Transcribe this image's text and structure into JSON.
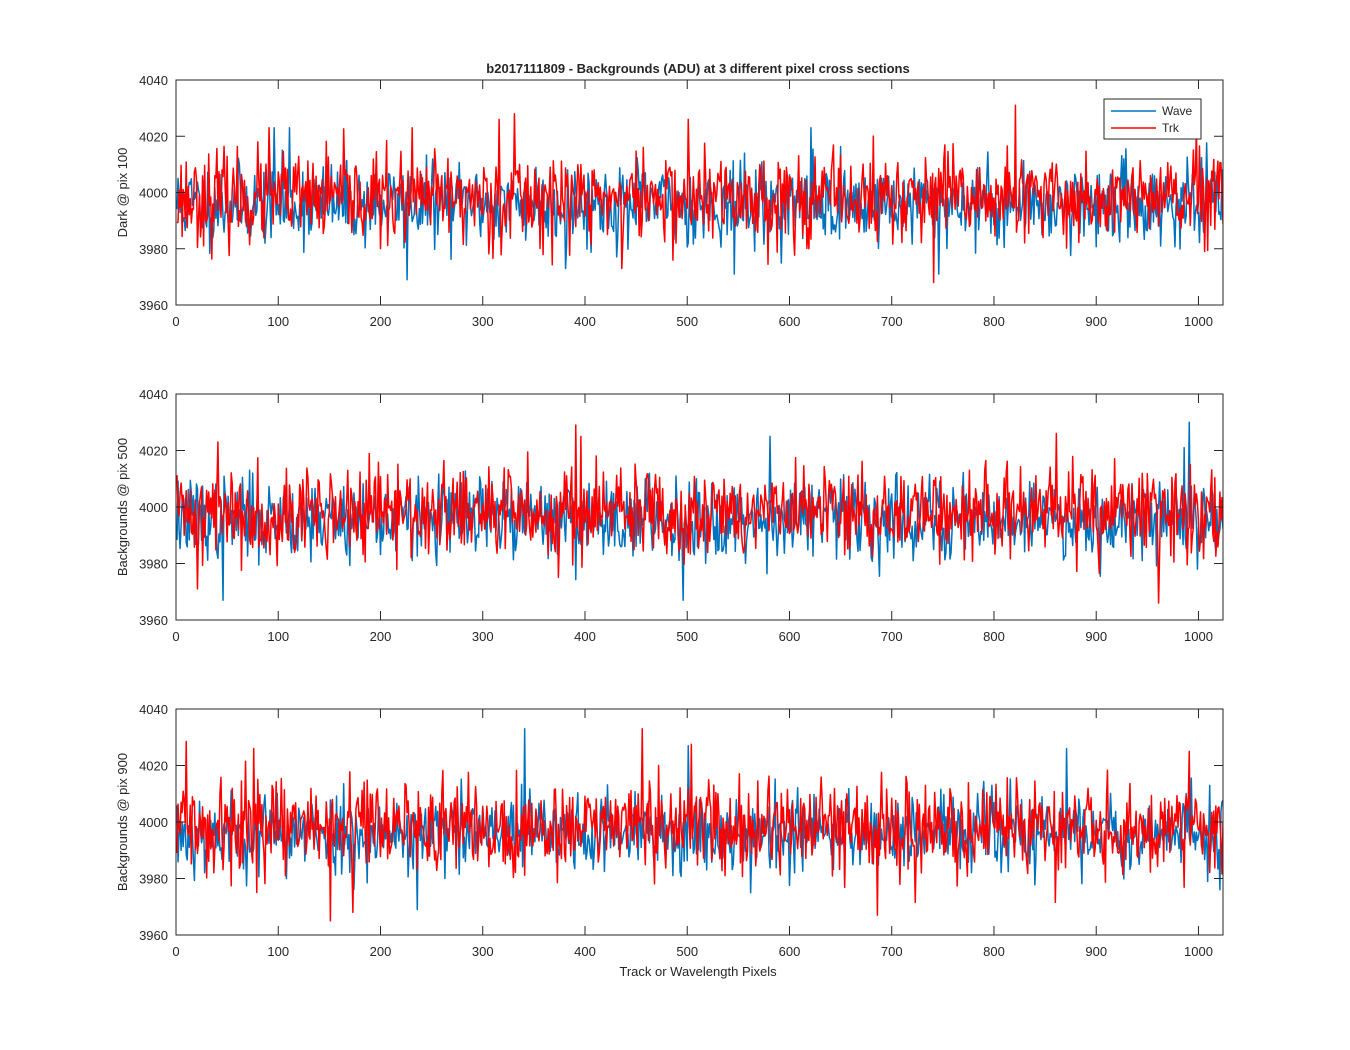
{
  "figure": {
    "title": "b2017111809 - Backgrounds (ADU) at 3 different pixel cross sections",
    "xlabel": "Track or Wavelength Pixels"
  },
  "colors": {
    "wave": "#0072BD",
    "trk": "#FF0000",
    "axes": "#262626",
    "background": "#ffffff"
  },
  "legend": {
    "location": "top-right",
    "entries": [
      "Wave",
      "Trk"
    ]
  },
  "chart_data": [
    {
      "type": "line",
      "title": "",
      "ylabel": "Dark @ pix 100",
      "xlim": [
        0,
        1024
      ],
      "ylim": [
        3960,
        4040
      ],
      "xticks": [
        0,
        100,
        200,
        300,
        400,
        500,
        600,
        700,
        800,
        900,
        1000
      ],
      "yticks": [
        3960,
        3980,
        4000,
        4020,
        4040
      ],
      "grid": false,
      "legend": true,
      "series": [
        {
          "name": "Wave",
          "color": "#0072BD",
          "n_points": 1024,
          "mean": 3996,
          "std": 7,
          "seed": 11,
          "extrema": [
            [
              95,
              4023
            ],
            [
              110,
              4023
            ],
            [
              225,
              3969
            ],
            [
              380,
              3973
            ],
            [
              545,
              3971
            ],
            [
              620,
              4023
            ],
            [
              745,
              3971
            ]
          ]
        },
        {
          "name": "Trk",
          "color": "#FF0000",
          "n_points": 1024,
          "mean": 3998,
          "std": 8,
          "seed": 23,
          "extrema": [
            [
              90,
              4023
            ],
            [
              230,
              4023
            ],
            [
              315,
              4026
            ],
            [
              330,
              4028
            ],
            [
              435,
              3973
            ],
            [
              500,
              4026
            ],
            [
              740,
              3968
            ],
            [
              820,
              4031
            ]
          ]
        }
      ]
    },
    {
      "type": "line",
      "title": "",
      "ylabel": "Backgrounds @ pix 500",
      "xlim": [
        0,
        1024
      ],
      "ylim": [
        3960,
        4040
      ],
      "xticks": [
        0,
        100,
        200,
        300,
        400,
        500,
        600,
        700,
        800,
        900,
        1000
      ],
      "yticks": [
        3960,
        3980,
        4000,
        4020,
        4040
      ],
      "grid": false,
      "legend": false,
      "series": [
        {
          "name": "Wave",
          "color": "#0072BD",
          "n_points": 1024,
          "mean": 3996,
          "std": 7,
          "seed": 37,
          "extrema": [
            [
              45,
              3967
            ],
            [
              495,
              3967
            ],
            [
              580,
              4025
            ],
            [
              985,
              4021
            ],
            [
              990,
              4030
            ]
          ]
        },
        {
          "name": "Trk",
          "color": "#FF0000",
          "n_points": 1024,
          "mean": 3998,
          "std": 8,
          "seed": 41,
          "extrema": [
            [
              20,
              3971
            ],
            [
              40,
              4023
            ],
            [
              390,
              4029
            ],
            [
              395,
              4025
            ],
            [
              860,
              4026
            ],
            [
              960,
              3966
            ]
          ]
        }
      ]
    },
    {
      "type": "line",
      "title": "",
      "ylabel": "Backgrounds @ pix 900",
      "xlim": [
        0,
        1024
      ],
      "ylim": [
        3960,
        4040
      ],
      "xticks": [
        0,
        100,
        200,
        300,
        400,
        500,
        600,
        700,
        800,
        900,
        1000
      ],
      "yticks": [
        3960,
        3980,
        4000,
        4020,
        4040
      ],
      "grid": false,
      "legend": false,
      "series": [
        {
          "name": "Wave",
          "color": "#0072BD",
          "n_points": 1024,
          "mean": 3996,
          "std": 7,
          "seed": 53,
          "extrema": [
            [
              235,
              3969
            ],
            [
              340,
              4033
            ],
            [
              500,
              4027
            ],
            [
              870,
              4026
            ]
          ]
        },
        {
          "name": "Trk",
          "color": "#FF0000",
          "n_points": 1024,
          "mean": 3998,
          "std": 8,
          "seed": 59,
          "extrema": [
            [
              75,
              4026
            ],
            [
              150,
              3965
            ],
            [
              172,
              3968
            ],
            [
              455,
              4033
            ],
            [
              685,
              3967
            ],
            [
              990,
              4025
            ]
          ]
        }
      ]
    }
  ]
}
